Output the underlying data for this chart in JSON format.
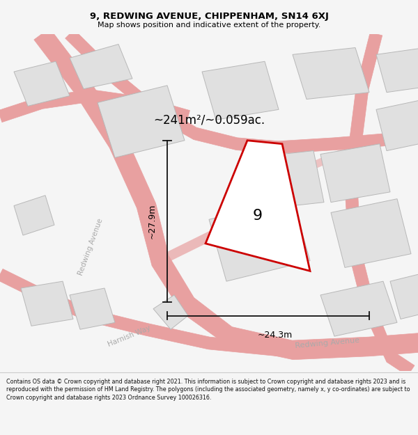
{
  "title_line1": "9, REDWING AVENUE, CHIPPENHAM, SN14 6XJ",
  "title_line2": "Map shows position and indicative extent of the property.",
  "area_text": "~241m²/~0.059ac.",
  "dim_vertical": "~27.9m",
  "dim_horizontal": "~24.3m",
  "plot_number": "9",
  "footer_text": "Contains OS data © Crown copyright and database right 2021. This information is subject to Crown copyright and database rights 2023 and is reproduced with the permission of HM Land Registry. The polygons (including the associated geometry, namely x, y co-ordinates) are subject to Crown copyright and database rights 2023 Ordnance Survey 100026316.",
  "bg_color": "#f5f5f5",
  "map_bg": "#ffffff",
  "road_stroke": "#e8a0a0",
  "road_fill": "#f8e8e8",
  "building_color": "#e0e0e0",
  "building_edge": "#b8b8b8",
  "plot_color": "#ffffff",
  "plot_edge": "#cc0000",
  "dim_line_color": "#111111",
  "road_label_color": "#aaaaaa",
  "title_color": "#000000",
  "footer_color": "#111111",
  "header_sep_color": "#cccccc"
}
